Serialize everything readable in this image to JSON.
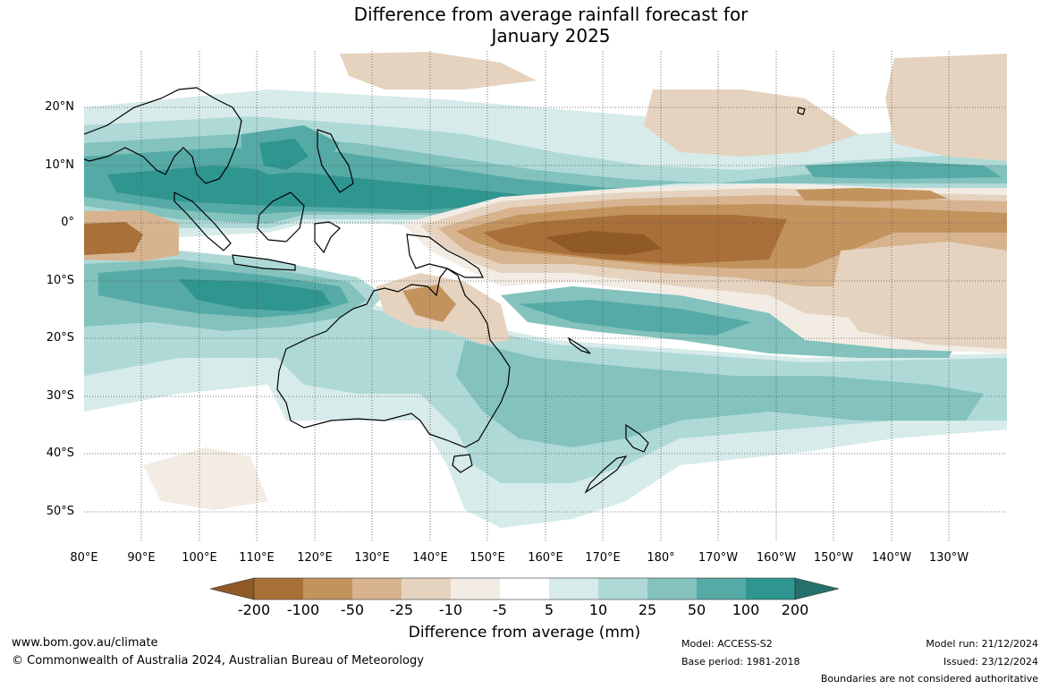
{
  "title": {
    "line1": "Difference from average rainfall forecast for",
    "line2": "January 2025"
  },
  "map": {
    "longitude_labels": [
      "80°E",
      "90°E",
      "100°E",
      "110°E",
      "120°E",
      "130°E",
      "140°E",
      "150°E",
      "160°E",
      "170°E",
      "180°",
      "170°W",
      "160°W",
      "150°W",
      "140°W",
      "130°W"
    ],
    "latitude_labels": [
      "20°N",
      "10°N",
      "0°",
      "10°S",
      "20°S",
      "30°S",
      "40°S",
      "50°S"
    ],
    "colors": {
      "very_dry": "#8f5a26",
      "dry_200": "#a97039",
      "dry_100": "#c3935e",
      "dry_50": "#d7b48f",
      "dry_25": "#e5d3bf",
      "dry_10": "#f2ece4",
      "neutral": "#ffffff",
      "wet_5": "#d6ebea",
      "wet_10": "#aed9d6",
      "wet_25": "#83c2bd",
      "wet_50": "#55aaa6",
      "wet_100": "#2f958f",
      "wet_200": "#25706d",
      "coastline": "#000000",
      "grid": "#555555"
    }
  },
  "colorbar": {
    "labels": [
      "-200",
      "-100",
      "-50",
      "-25",
      "-10",
      "-5",
      "5",
      "10",
      "25",
      "50",
      "100",
      "200"
    ],
    "title": "Difference from average (mm)"
  },
  "footer": {
    "website": "www.bom.gov.au/climate",
    "copyright": "© Commonwealth of Australia 2024, Australian Bureau of Meteorology",
    "model": "Model: ACCESS-S2",
    "base_period": "Base period: 1981-2018",
    "model_run": "Model run: 21/12/2024",
    "issued": "Issued: 23/12/2024",
    "disclaimer": "Boundaries are not considered authoritative"
  }
}
